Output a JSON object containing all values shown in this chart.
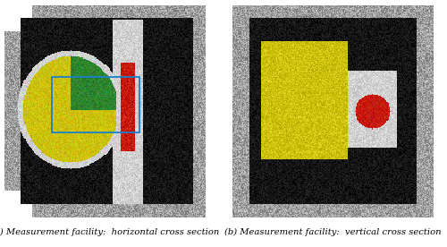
{
  "fig_width": 5.0,
  "fig_height": 2.76,
  "dpi": 100,
  "caption_left": "(a) Measurement facility:  horizontal cross section",
  "caption_right": "(b) Measurement facility:  vertical cross section",
  "caption_fontsize": 7.2,
  "colors": {
    "gray_outer": [
      0.62,
      0.62,
      0.62
    ],
    "black_inner": [
      0.08,
      0.08,
      0.08
    ],
    "white_mod": [
      0.82,
      0.82,
      0.82
    ],
    "yellow_drum": [
      0.8,
      0.76,
      0.05
    ],
    "green_sector": [
      0.18,
      0.52,
      0.18
    ],
    "red_gen": [
      0.78,
      0.1,
      0.05
    ],
    "blue_frame": [
      0.1,
      0.5,
      0.8
    ]
  }
}
